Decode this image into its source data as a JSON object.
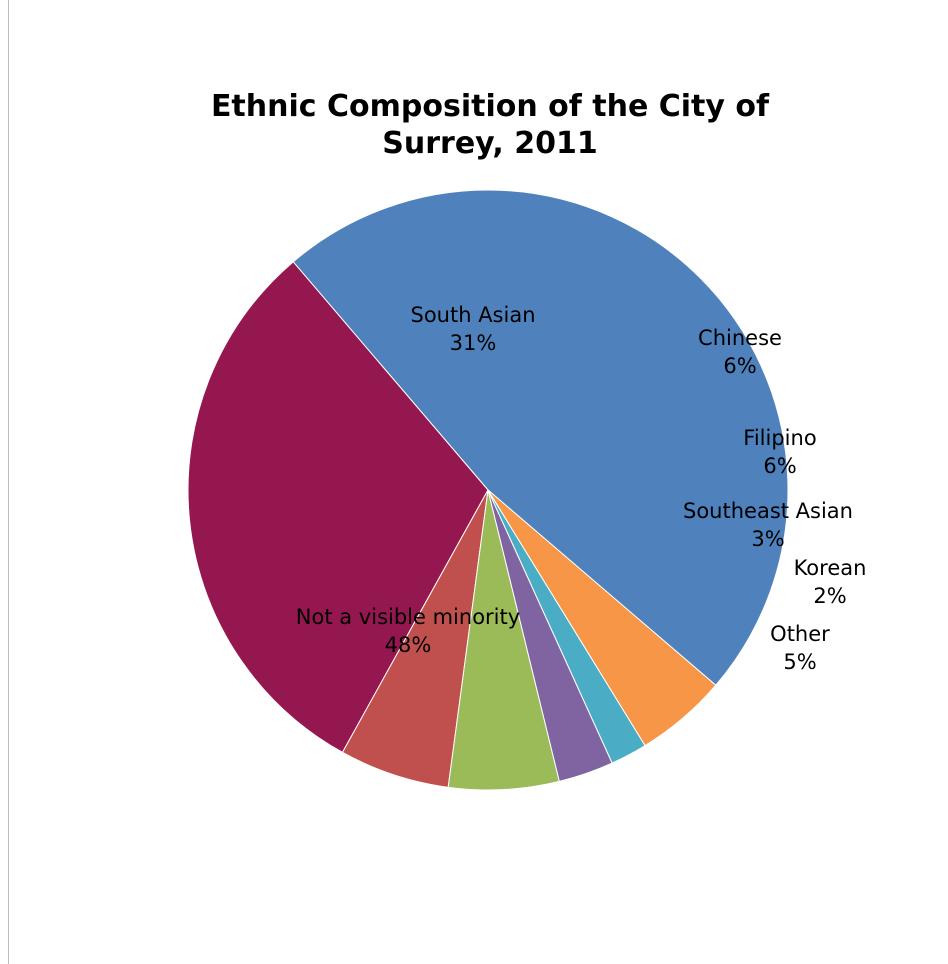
{
  "chart_data": {
    "type": "pie",
    "title_lines": [
      "Ethnic Composition of the City of",
      "Surrey, 2011"
    ],
    "slices": [
      {
        "label": "Not a visible minority",
        "value": 48,
        "value_label": "48%",
        "color": "#4F81BD"
      },
      {
        "label": "South Asian",
        "value": 31,
        "value_label": "31%",
        "color": "#95174F"
      },
      {
        "label": "Chinese",
        "value": 6,
        "value_label": "6%",
        "color": "#C0504D"
      },
      {
        "label": "Filipino",
        "value": 6,
        "value_label": "6%",
        "color": "#9BBB59"
      },
      {
        "label": "Southeast Asian",
        "value": 3,
        "value_label": "3%",
        "color": "#8064A2"
      },
      {
        "label": "Korean",
        "value": 2,
        "value_label": "2%",
        "color": "#4BACC6"
      },
      {
        "label": "Other",
        "value": 5,
        "value_label": "5%",
        "color": "#F79646"
      }
    ]
  }
}
